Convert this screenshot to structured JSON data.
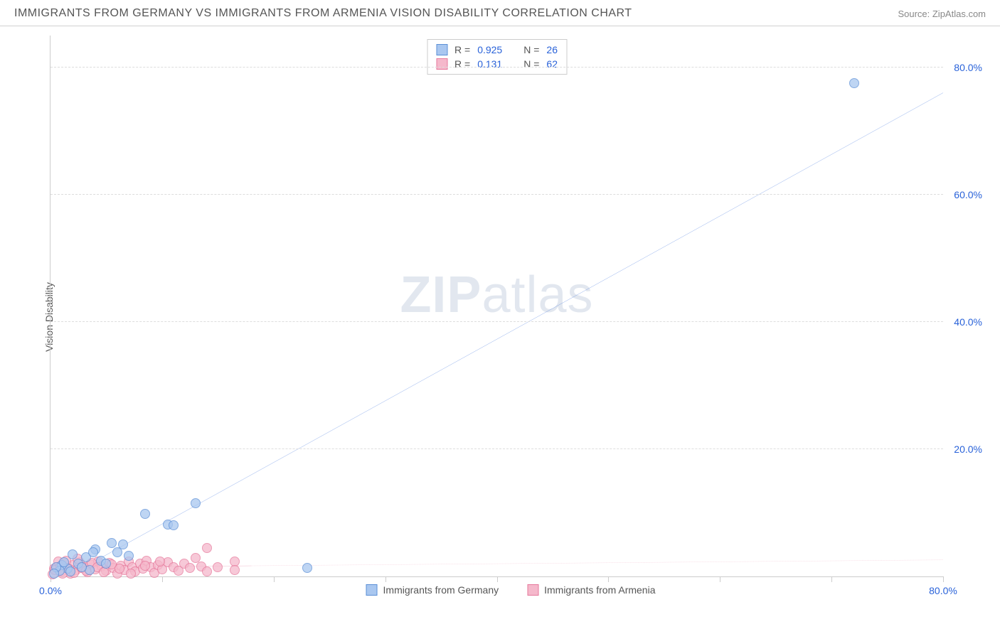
{
  "header": {
    "title": "IMMIGRANTS FROM GERMANY VS IMMIGRANTS FROM ARMENIA VISION DISABILITY CORRELATION CHART",
    "source": "Source: ZipAtlas.com"
  },
  "watermark": {
    "zip": "ZIP",
    "atlas": "atlas"
  },
  "chart": {
    "type": "scatter",
    "y_axis_label": "Vision Disability",
    "xlim": [
      0,
      80
    ],
    "ylim": [
      0,
      85
    ],
    "x_ticks": [
      0,
      10,
      20,
      30,
      40,
      50,
      60,
      70,
      80
    ],
    "x_tick_labels": {
      "0": "0.0%",
      "80": "80.0%"
    },
    "y_ticks": [
      20,
      40,
      60,
      80
    ],
    "y_tick_labels": {
      "20": "20.0%",
      "40": "40.0%",
      "60": "60.0%",
      "80": "80.0%"
    },
    "grid_color": "#dddddd",
    "axis_color": "#cccccc",
    "tick_label_color": "#2962d9",
    "background_color": "#ffffff",
    "series": [
      {
        "name": "Immigrants from Germany",
        "color_fill": "#a9c7f0",
        "color_stroke": "#5b8fd6",
        "trend_color": "#2962d9",
        "trend_dash": "none",
        "R": "0.925",
        "N": "26",
        "marker_radius": 7,
        "trend": {
          "x1": 1.5,
          "y1": 0,
          "x2": 80,
          "y2": 76
        },
        "data": [
          {
            "x": 72,
            "y": 77.5
          },
          {
            "x": 13,
            "y": 11.5
          },
          {
            "x": 10.5,
            "y": 8.2
          },
          {
            "x": 11,
            "y": 8.0
          },
          {
            "x": 8.5,
            "y": 9.8
          },
          {
            "x": 5.5,
            "y": 5.2
          },
          {
            "x": 6,
            "y": 3.8
          },
          {
            "x": 7,
            "y": 3.2
          },
          {
            "x": 4,
            "y": 4.2
          },
          {
            "x": 3.2,
            "y": 3.0
          },
          {
            "x": 2.5,
            "y": 2.0
          },
          {
            "x": 2.0,
            "y": 3.5
          },
          {
            "x": 1.5,
            "y": 1.2
          },
          {
            "x": 1.0,
            "y": 1.8
          },
          {
            "x": 0.8,
            "y": 0.9
          },
          {
            "x": 23,
            "y": 1.3
          },
          {
            "x": 3.5,
            "y": 1.0
          },
          {
            "x": 4.5,
            "y": 2.5
          },
          {
            "x": 1.2,
            "y": 2.2
          },
          {
            "x": 5.0,
            "y": 2.0
          },
          {
            "x": 0.5,
            "y": 1.5
          },
          {
            "x": 2.8,
            "y": 1.5
          },
          {
            "x": 6.5,
            "y": 5.0
          },
          {
            "x": 3.8,
            "y": 3.8
          },
          {
            "x": 1.8,
            "y": 0.8
          },
          {
            "x": 0.3,
            "y": 0.5
          }
        ]
      },
      {
        "name": "Immigrants from Armenia",
        "color_fill": "#f5b8cb",
        "color_stroke": "#e6799c",
        "trend_color": "#e6799c",
        "trend_dash": "dashed",
        "R": "0.131",
        "N": "62",
        "marker_radius": 7,
        "trend": {
          "x1": 0,
          "y1": 1.4,
          "x2": 80,
          "y2": 2.6
        },
        "trend_solid_until": 18,
        "data": [
          {
            "x": 0.3,
            "y": 1.2
          },
          {
            "x": 0.6,
            "y": 1.5
          },
          {
            "x": 1.0,
            "y": 0.8
          },
          {
            "x": 1.2,
            "y": 2.0
          },
          {
            "x": 1.5,
            "y": 1.3
          },
          {
            "x": 1.8,
            "y": 0.5
          },
          {
            "x": 2.0,
            "y": 1.8
          },
          {
            "x": 2.3,
            "y": 1.0
          },
          {
            "x": 2.6,
            "y": 2.2
          },
          {
            "x": 3.0,
            "y": 1.4
          },
          {
            "x": 3.3,
            "y": 0.7
          },
          {
            "x": 3.6,
            "y": 1.9
          },
          {
            "x": 4.0,
            "y": 1.1
          },
          {
            "x": 4.3,
            "y": 2.4
          },
          {
            "x": 4.6,
            "y": 1.6
          },
          {
            "x": 5.0,
            "y": 0.9
          },
          {
            "x": 5.3,
            "y": 2.1
          },
          {
            "x": 5.6,
            "y": 1.3
          },
          {
            "x": 6.0,
            "y": 0.4
          },
          {
            "x": 6.3,
            "y": 1.7
          },
          {
            "x": 6.6,
            "y": 1.0
          },
          {
            "x": 7.0,
            "y": 2.3
          },
          {
            "x": 7.3,
            "y": 1.5
          },
          {
            "x": 7.6,
            "y": 0.8
          },
          {
            "x": 8.0,
            "y": 2.0
          },
          {
            "x": 8.3,
            "y": 1.2
          },
          {
            "x": 8.6,
            "y": 2.5
          },
          {
            "x": 9.0,
            "y": 1.4
          },
          {
            "x": 9.3,
            "y": 0.6
          },
          {
            "x": 9.6,
            "y": 1.8
          },
          {
            "x": 10.0,
            "y": 1.1
          },
          {
            "x": 10.5,
            "y": 2.2
          },
          {
            "x": 11.0,
            "y": 1.5
          },
          {
            "x": 11.5,
            "y": 0.9
          },
          {
            "x": 12.0,
            "y": 2.0
          },
          {
            "x": 12.5,
            "y": 1.3
          },
          {
            "x": 13.0,
            "y": 2.9
          },
          {
            "x": 13.5,
            "y": 1.6
          },
          {
            "x": 14.0,
            "y": 0.8
          },
          {
            "x": 14.0,
            "y": 4.5
          },
          {
            "x": 15.0,
            "y": 1.4
          },
          {
            "x": 16.5,
            "y": 2.3
          },
          {
            "x": 16.5,
            "y": 1.0
          },
          {
            "x": 0.2,
            "y": 0.3
          },
          {
            "x": 0.4,
            "y": 1.0
          },
          {
            "x": 0.7,
            "y": 2.3
          },
          {
            "x": 0.9,
            "y": 1.6
          },
          {
            "x": 1.1,
            "y": 0.4
          },
          {
            "x": 1.4,
            "y": 2.5
          },
          {
            "x": 1.7,
            "y": 1.1
          },
          {
            "x": 2.1,
            "y": 0.6
          },
          {
            "x": 2.4,
            "y": 2.8
          },
          {
            "x": 2.8,
            "y": 1.3
          },
          {
            "x": 3.2,
            "y": 0.9
          },
          {
            "x": 3.7,
            "y": 2.1
          },
          {
            "x": 4.2,
            "y": 1.5
          },
          {
            "x": 4.8,
            "y": 0.7
          },
          {
            "x": 5.5,
            "y": 1.9
          },
          {
            "x": 6.2,
            "y": 1.2
          },
          {
            "x": 7.2,
            "y": 0.5
          },
          {
            "x": 8.5,
            "y": 1.7
          },
          {
            "x": 9.8,
            "y": 2.4
          }
        ]
      }
    ],
    "legend_top": {
      "R_label": "R =",
      "N_label": "N ="
    },
    "legend_bottom": [
      {
        "label": "Immigrants from Germany",
        "fill": "#a9c7f0",
        "stroke": "#5b8fd6"
      },
      {
        "label": "Immigrants from Armenia",
        "fill": "#f5b8cb",
        "stroke": "#e6799c"
      }
    ]
  }
}
